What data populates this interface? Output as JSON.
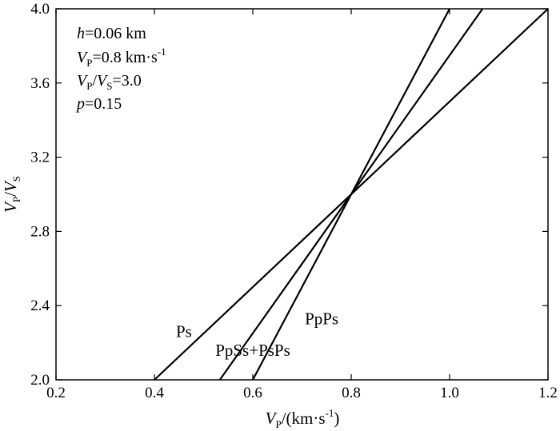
{
  "chart_data": {
    "type": "line",
    "xlabel": {
      "var": "V",
      "sub": "P",
      "rest": "/(km·s",
      "sup": "-1",
      "close": ")"
    },
    "ylabel": {
      "var1": "V",
      "sub1": "P",
      "slash": "/",
      "var2": "V",
      "sub2": "S"
    },
    "xlim": [
      0.2,
      1.2
    ],
    "ylim": [
      2.0,
      4.0
    ],
    "xticks": [
      0.2,
      0.4,
      0.6,
      0.8,
      1.0,
      1.2
    ],
    "xtick_labels": [
      "0.2",
      "0.4",
      "0.6",
      "0.8",
      "1.0",
      "1.2"
    ],
    "yticks": [
      2.0,
      2.4,
      2.8,
      3.2,
      3.6,
      4.0
    ],
    "ytick_labels": [
      "2.0",
      "2.4",
      "2.8",
      "3.2",
      "3.6",
      "4.0"
    ],
    "grid": false,
    "series": [
      {
        "name": "Ps",
        "x": [
          0.4,
          1.2
        ],
        "y": [
          2.0,
          4.0
        ]
      },
      {
        "name": "PpSs+PsPs",
        "x": [
          0.533,
          1.067
        ],
        "y": [
          2.0,
          4.0
        ]
      },
      {
        "name": "PpPs",
        "x": [
          0.6,
          1.0
        ],
        "y": [
          2.0,
          4.0
        ]
      }
    ],
    "annotations": [
      {
        "var": "h",
        "text": "=0.06 km"
      },
      {
        "var": "V",
        "sub": "P",
        "text": "=0.8 km·s",
        "sup": "-1"
      },
      {
        "var": "V",
        "sub": "P",
        "mid": "/",
        "var2": "V",
        "sub2": "S",
        "text": "=3.0"
      },
      {
        "var": "p",
        "text": "=0.15"
      }
    ],
    "curve_labels": [
      {
        "text": "Ps",
        "x": 0.46,
        "y": 2.23
      },
      {
        "text": "PpSs+PsPs",
        "x": 0.6,
        "y": 2.13
      },
      {
        "text": "PpPs",
        "x": 0.74,
        "y": 2.3
      }
    ]
  }
}
